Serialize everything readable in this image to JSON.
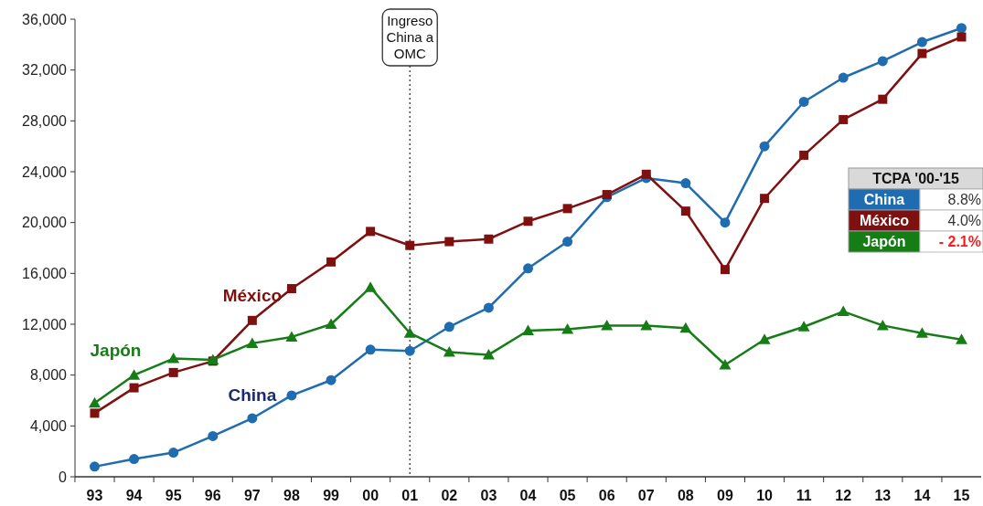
{
  "chart_data": {
    "type": "line",
    "categories": [
      "93",
      "94",
      "95",
      "96",
      "97",
      "98",
      "99",
      "00",
      "01",
      "02",
      "03",
      "04",
      "05",
      "06",
      "07",
      "08",
      "09",
      "10",
      "11",
      "12",
      "13",
      "14",
      "15"
    ],
    "series": [
      {
        "name": "China",
        "color": "#1f6cb0",
        "marker": "circle",
        "values": [
          800,
          1400,
          1900,
          3200,
          4600,
          6400,
          7600,
          10000,
          9900,
          11800,
          13300,
          16400,
          18500,
          22000,
          23500,
          23100,
          20000,
          26000,
          29500,
          31400,
          32700,
          34200,
          35300
        ]
      },
      {
        "name": "México",
        "color": "#7f1010",
        "marker": "square",
        "values": [
          5000,
          7000,
          8200,
          9100,
          12300,
          14800,
          16900,
          19300,
          18200,
          18500,
          18700,
          20100,
          21100,
          22200,
          23800,
          20900,
          16300,
          21900,
          25300,
          28100,
          29700,
          33300,
          34600
        ]
      },
      {
        "name": "Japón",
        "color": "#167d16",
        "marker": "triangle",
        "values": [
          5800,
          8000,
          9300,
          9200,
          10500,
          11000,
          12000,
          14900,
          11300,
          9800,
          9600,
          11500,
          11600,
          11900,
          11900,
          11700,
          8800,
          10800,
          11800,
          13000,
          11900,
          11300,
          10800
        ]
      }
    ],
    "ylim": [
      0,
      36000
    ],
    "yticks": [
      {
        "value": 0,
        "label": "0"
      },
      {
        "value": 4000,
        "label": "4,000"
      },
      {
        "value": 8000,
        "label": "8,000"
      },
      {
        "value": 12000,
        "label": "12,000"
      },
      {
        "value": 16000,
        "label": "16,000"
      },
      {
        "value": 20000,
        "label": "20,000"
      },
      {
        "value": 24000,
        "label": "24,000"
      },
      {
        "value": 28000,
        "label": "28,000"
      },
      {
        "value": 32000,
        "label": "32,000"
      },
      {
        "value": 36000,
        "label": "36,000"
      }
    ],
    "ref_lines": [
      {
        "axis": "x",
        "value": "01",
        "label": "Ingreso China a OMC",
        "line_style": "dotted"
      }
    ],
    "annotations": [
      "TCPA '00-'15",
      "8.8%",
      "4.0%",
      "- 2.1%"
    ],
    "grid": false
  }
}
